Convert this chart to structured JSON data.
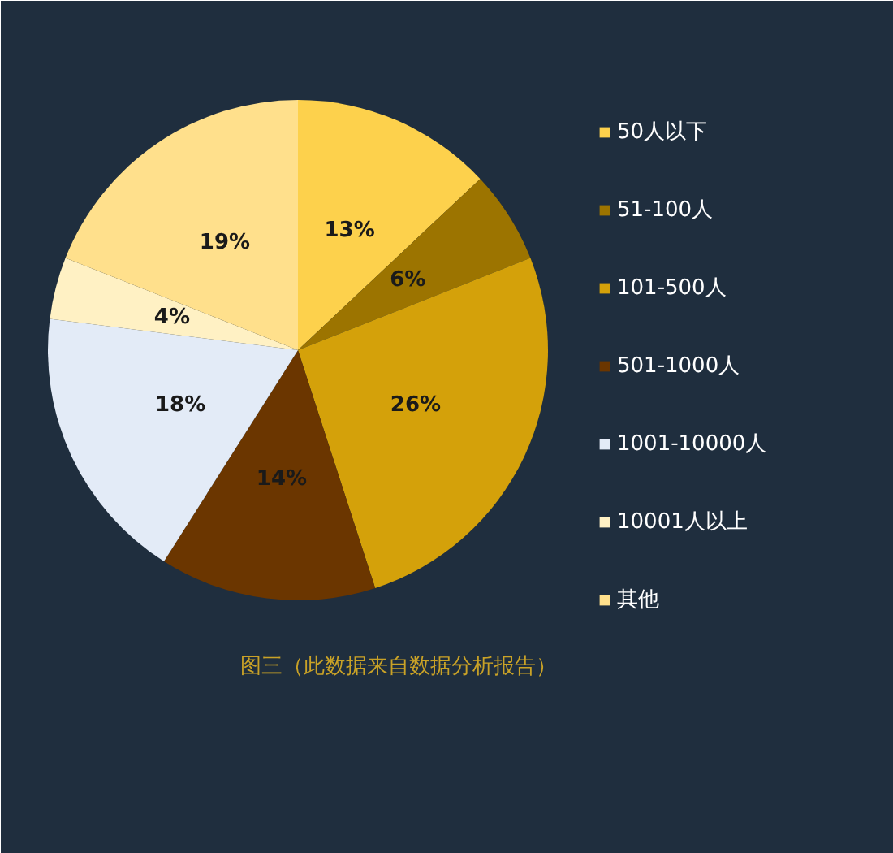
{
  "chart_data": {
    "type": "pie",
    "categories": [
      "50人以下",
      "51-100人",
      "101-500人",
      "501-1000人",
      "1001-10000人",
      "10001人以上",
      "其他"
    ],
    "values": [
      13,
      6,
      26,
      14,
      18,
      4,
      19
    ],
    "colors": [
      "#fdd14c",
      "#9c7400",
      "#d4a10a",
      "#6b3600",
      "#e3ebf7",
      "#fff1c4",
      "#ffe08c"
    ],
    "value_labels": [
      "13%",
      "6%",
      "26%",
      "14%",
      "18%",
      "4%",
      "19%"
    ],
    "legend": "right",
    "annotations": [
      "图三（此数据来自数据分析报告）"
    ]
  }
}
